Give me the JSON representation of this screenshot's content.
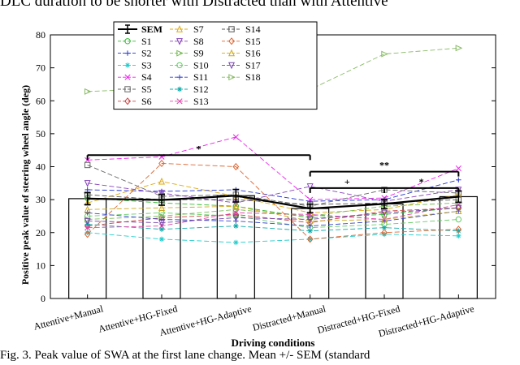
{
  "page": {
    "caption_top": "DLC duration to be shorter with Distracted than with Attentive",
    "caption_bottom": "Fig. 3. Peak value of SWA at the first lane change. Mean +/- SEM (standard"
  },
  "chart_data": {
    "type": "bar",
    "title": "",
    "xlabel": "Driving conditions",
    "ylabel": "Positive peak value of steering wheel angle (deg)",
    "ylim": [
      0,
      80
    ],
    "yticks": [
      0,
      10,
      20,
      30,
      40,
      50,
      60,
      70,
      80
    ],
    "grid": false,
    "legend_position": "top-left",
    "categories": [
      "Attentive+Manual",
      "Attentive+HG-Fixed",
      "Attentive+HG-Adaptive",
      "Distracted+Manual",
      "Distracted+HG-Fixed",
      "Distracted+HG-Adaptive"
    ],
    "mean": {
      "name": "SEM",
      "values": [
        30.3,
        29.9,
        31.2,
        27.3,
        28.7,
        30.9
      ],
      "sem": [
        1.8,
        1.6,
        1.9,
        1.3,
        1.4,
        1.7
      ],
      "color": "#000000"
    },
    "series": [
      {
        "name": "S1",
        "marker": "circle",
        "color": "#33bb33",
        "dash": "6,3",
        "values": [
          30.5,
          29.0,
          28.0,
          24.5,
          25.5,
          27.5
        ]
      },
      {
        "name": "S2",
        "marker": "plus",
        "color": "#2233cc",
        "dash": "6,3",
        "values": [
          33.0,
          32.5,
          33.0,
          29.5,
          30.0,
          36.0
        ]
      },
      {
        "name": "S3",
        "marker": "star",
        "color": "#22cccc",
        "dash": "6,3",
        "values": [
          20.0,
          18.0,
          17.0,
          18.0,
          19.5,
          19.0
        ]
      },
      {
        "name": "S4",
        "marker": "cross",
        "color": "#ee22ee",
        "dash": "6,3",
        "values": [
          42.0,
          43.0,
          49.0,
          30.0,
          30.5,
          39.5
        ]
      },
      {
        "name": "S5",
        "marker": "square",
        "color": "#666666",
        "dash": "6,3",
        "values": [
          40.5,
          31.0,
          31.5,
          28.0,
          33.0,
          32.0
        ]
      },
      {
        "name": "S6",
        "marker": "diamond",
        "color": "#cc4444",
        "dash": "6,3",
        "values": [
          22.0,
          24.5,
          25.5,
          23.0,
          26.5,
          27.5
        ]
      },
      {
        "name": "S7",
        "marker": "triangle-up",
        "color": "#ddaa11",
        "dash": "6,3",
        "values": [
          29.0,
          35.5,
          31.0,
          26.0,
          27.0,
          31.5
        ]
      },
      {
        "name": "S8",
        "marker": "triangle-down",
        "color": "#8844bb",
        "dash": "6,3",
        "values": [
          35.0,
          32.0,
          29.0,
          34.0,
          29.5,
          33.0
        ]
      },
      {
        "name": "S9",
        "marker": "triangle-right",
        "color": "#77bb55",
        "dash": "6,3",
        "values": [
          24.0,
          25.0,
          27.0,
          25.0,
          28.0,
          29.0
        ]
      },
      {
        "name": "S10",
        "marker": "circle",
        "color": "#66cc66",
        "dash": "6,3",
        "values": [
          25.0,
          26.0,
          25.0,
          21.5,
          22.5,
          24.0
        ]
      },
      {
        "name": "S11",
        "marker": "plus",
        "color": "#3344cc",
        "dash": "6,3",
        "values": [
          26.0,
          24.0,
          23.5,
          22.0,
          23.5,
          26.5
        ]
      },
      {
        "name": "S12",
        "marker": "star",
        "color": "#11aaaa",
        "dash": "6,3",
        "values": [
          22.5,
          21.0,
          22.0,
          20.5,
          21.5,
          20.5
        ]
      },
      {
        "name": "S13",
        "marker": "cross",
        "color": "#dd44aa",
        "dash": "6,3",
        "values": [
          21.5,
          22.0,
          26.0,
          25.5,
          24.0,
          28.5
        ]
      },
      {
        "name": "S14",
        "marker": "square",
        "color": "#555555",
        "dash": "6,3",
        "values": [
          31.5,
          30.0,
          30.0,
          28.5,
          29.0,
          30.0
        ]
      },
      {
        "name": "S15",
        "marker": "diamond",
        "color": "#dd6633",
        "dash": "6,3",
        "values": [
          19.5,
          41.0,
          40.0,
          18.0,
          20.0,
          21.0
        ]
      },
      {
        "name": "S16",
        "marker": "triangle-up",
        "color": "#ccaa22",
        "dash": "6,3",
        "values": [
          27.0,
          27.5,
          28.0,
          23.5,
          24.0,
          26.5
        ]
      },
      {
        "name": "S17",
        "marker": "triangle-down",
        "color": "#7744aa",
        "dash": "6,3",
        "values": [
          23.5,
          23.0,
          24.5,
          24.0,
          26.0,
          27.5
        ]
      },
      {
        "name": "S18",
        "marker": "triangle-right",
        "color": "#88bb66",
        "dash": "6,3",
        "values": [
          62.8,
          63.8,
          63.4,
          63.4,
          74.2,
          76.0
        ]
      }
    ],
    "significance": [
      {
        "from": 0,
        "to": 3,
        "label": "*",
        "y": 43.5
      },
      {
        "from": 3,
        "to": 4,
        "label": "+",
        "y": 33.5
      },
      {
        "from": 4,
        "to": 5,
        "label": "*",
        "y": 33.5
      },
      {
        "from": 3,
        "to": 5,
        "label": "**",
        "y": 38.5
      }
    ]
  }
}
